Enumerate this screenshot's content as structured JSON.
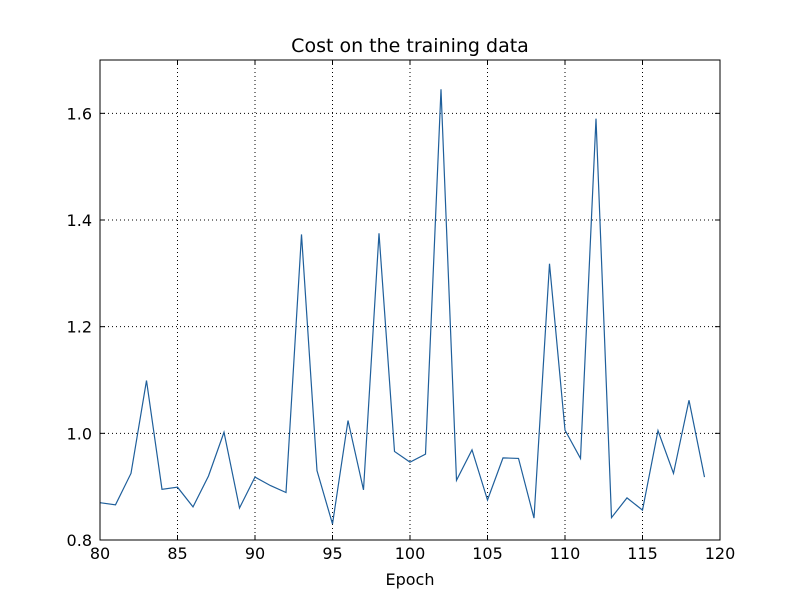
{
  "chart_data": {
    "type": "line",
    "title": "Cost on the training data",
    "xlabel": "Epoch",
    "ylabel": "",
    "xlim": [
      80,
      120
    ],
    "ylim": [
      0.8,
      1.7
    ],
    "grid": true,
    "x_ticks": [
      80,
      85,
      90,
      95,
      100,
      105,
      110,
      115,
      120
    ],
    "x_tick_labels": [
      "80",
      "85",
      "90",
      "95",
      "100",
      "105",
      "110",
      "115",
      "120"
    ],
    "y_ticks": [
      0.8,
      1.0,
      1.2,
      1.4,
      1.6
    ],
    "y_tick_labels": [
      "0.8",
      "1.0",
      "1.2",
      "1.4",
      "1.6"
    ],
    "series": [
      {
        "color": "#1f5f9b",
        "x": [
          80,
          81,
          82,
          83,
          84,
          85,
          86,
          87,
          88,
          89,
          90,
          91,
          92,
          93,
          94,
          95,
          96,
          97,
          98,
          99,
          100,
          101,
          102,
          103,
          104,
          105,
          106,
          107,
          108,
          109,
          110,
          111,
          112,
          113,
          114,
          115,
          116,
          117,
          118,
          119
        ],
        "y": [
          0.87,
          0.866,
          0.925,
          1.099,
          0.895,
          0.899,
          0.862,
          0.92,
          1.002,
          0.86,
          0.918,
          0.902,
          0.889,
          1.373,
          0.93,
          0.83,
          1.024,
          0.894,
          1.375,
          0.966,
          0.946,
          0.961,
          1.645,
          0.912,
          0.969,
          0.875,
          0.954,
          0.953,
          0.841,
          1.318,
          1.006,
          0.953,
          1.59,
          0.842,
          0.879,
          0.856,
          1.005,
          0.925,
          1.062,
          0.918
        ]
      }
    ]
  }
}
